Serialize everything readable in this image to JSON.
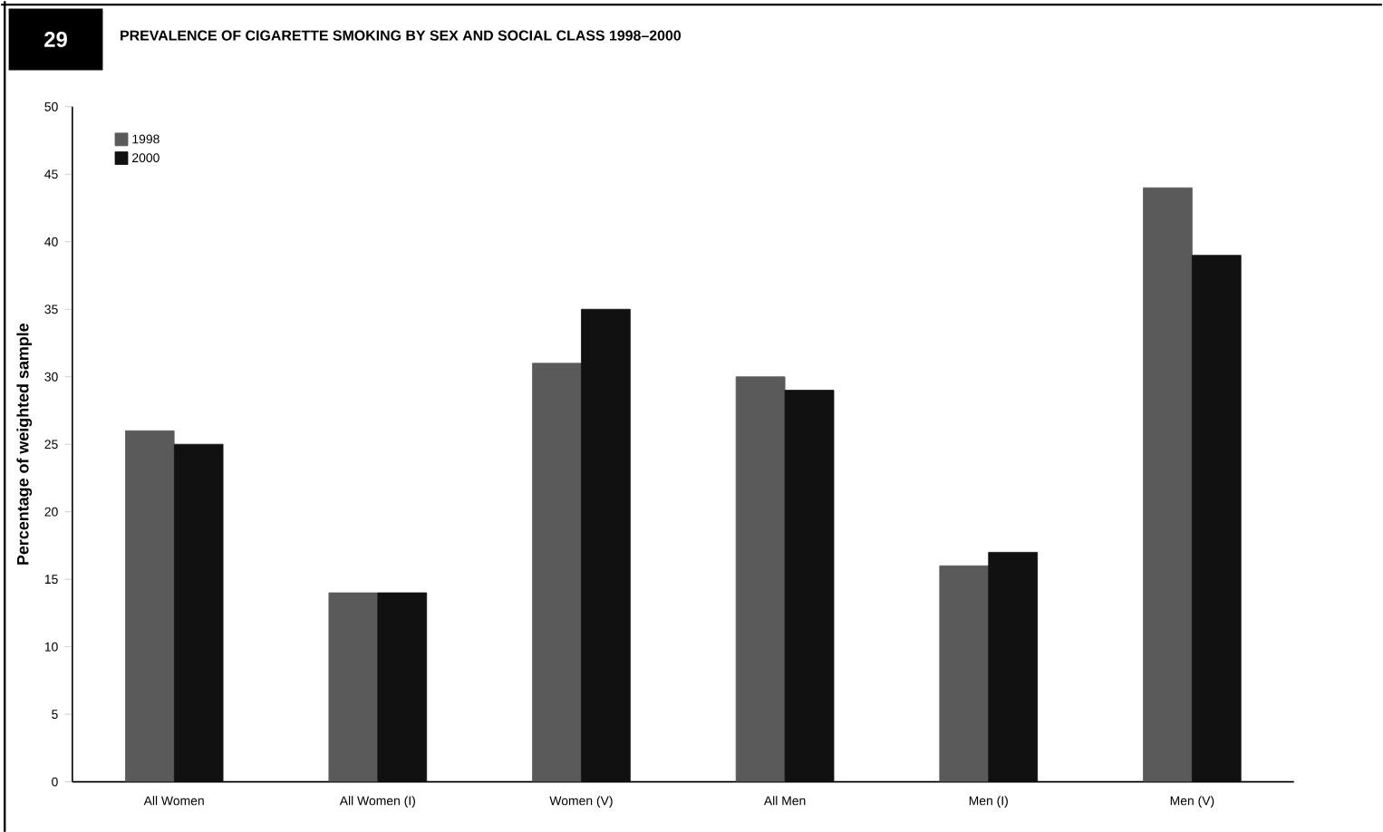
{
  "chart_data": {
    "type": "bar",
    "title": "PREVALENCE OF CIGARETTE SMOKING BY SEX AND SOCIAL CLASS 1998–2000",
    "ylabel": "Percentage of weighted sample",
    "annotations": [
      "29"
    ],
    "categories": [
      "All Women",
      "All Women (I)",
      "Women (V)",
      "All Men",
      "Men (I)",
      "Men (V)"
    ],
    "series": [
      {
        "name": "1998",
        "color": "#5a5a5a",
        "values": [
          26,
          14,
          31,
          30,
          16,
          44
        ]
      },
      {
        "name": "2000",
        "color": "#111111",
        "values": [
          25,
          14,
          35,
          29,
          17,
          39
        ]
      }
    ],
    "ylim": [
      0,
      50
    ],
    "yticks": [
      0,
      5,
      10,
      15,
      20,
      25,
      30,
      35,
      40,
      45,
      50
    ],
    "legend": "top left",
    "grid": false
  }
}
